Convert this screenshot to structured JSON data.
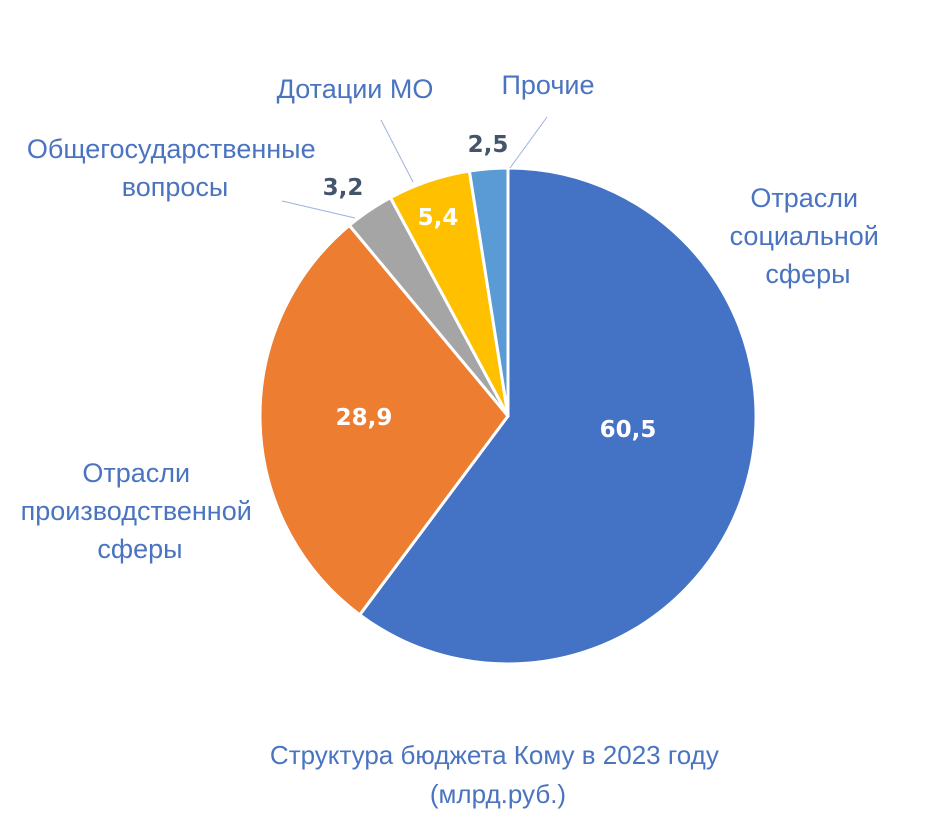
{
  "chart_data": {
    "type": "pie",
    "title_lines": [
      "Структура бюджета Кому в 2023 году",
      "(млрд.руб.)"
    ],
    "slices": [
      {
        "label_lines": [
          "Отрасли",
          "социальной",
          "сферы"
        ],
        "value": 60.5,
        "value_text": "60,5",
        "color": "#4472c4",
        "value_color": "#ffffff"
      },
      {
        "label_lines": [
          "Отрасли",
          "производственной",
          "сферы"
        ],
        "value": 28.9,
        "value_text": "28,9",
        "color": "#ed7d31",
        "value_color": "#ffffff"
      },
      {
        "label_lines": [
          "Общегосударственные",
          "вопросы"
        ],
        "value": 3.2,
        "value_text": "3,2",
        "color": "#a5a5a5",
        "value_color": "#44546a"
      },
      {
        "label_lines": [
          "Дотации МО"
        ],
        "value": 5.4,
        "value_text": "5,4",
        "color": "#ffc000",
        "value_color": "#ffffff"
      },
      {
        "label_lines": [
          "Прочие"
        ],
        "value": 2.5,
        "value_text": "2,5",
        "color": "#5b9bd5",
        "value_color": "#44546a"
      }
    ]
  }
}
